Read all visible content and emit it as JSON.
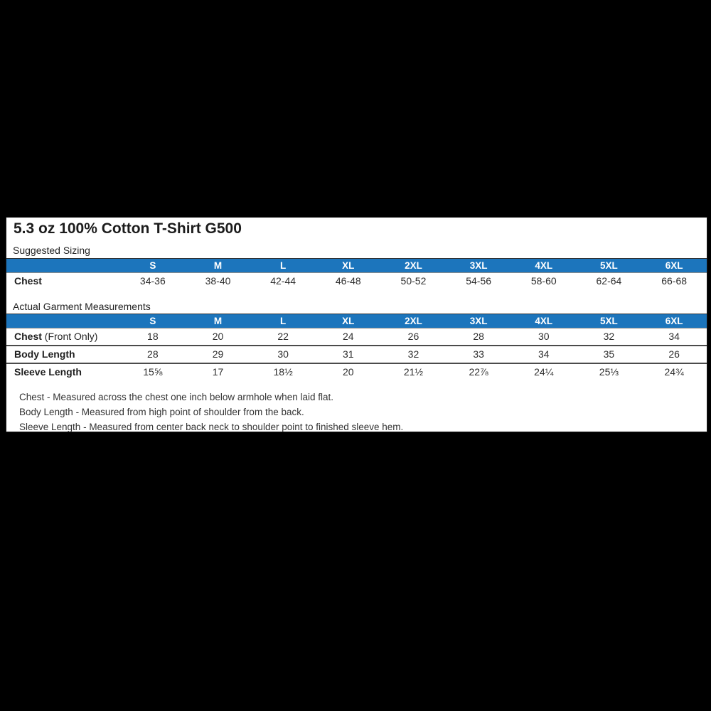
{
  "page": {
    "background_color": "#000000",
    "panel_background": "#ffffff"
  },
  "colors": {
    "header_blue": "#1c75bc",
    "header_text": "#ffffff",
    "title_text": "#1c1c1c",
    "row_divider": "#4b4b4b"
  },
  "title": "5.3 oz 100% Cotton T-Shirt G500",
  "suggested_sizing": {
    "section_label": "Suggested Sizing",
    "sizes": [
      "S",
      "M",
      "L",
      "XL",
      "2XL",
      "3XL",
      "4XL",
      "5XL",
      "6XL"
    ],
    "rows": [
      {
        "label": "Chest",
        "label_suffix": "",
        "values": [
          "34-36",
          "38-40",
          "42-44",
          "46-48",
          "50-52",
          "54-56",
          "58-60",
          "62-64",
          "66-68"
        ]
      }
    ]
  },
  "garment_measurements": {
    "section_label": "Actual Garment Measurements",
    "sizes": [
      "S",
      "M",
      "L",
      "XL",
      "2XL",
      "3XL",
      "4XL",
      "5XL",
      "6XL"
    ],
    "rows": [
      {
        "label": "Chest",
        "label_suffix": " (Front Only)",
        "values": [
          "18",
          "20",
          "22",
          "24",
          "26",
          "28",
          "30",
          "32",
          "34"
        ]
      },
      {
        "label": "Body Length",
        "label_suffix": "",
        "values": [
          "28",
          "29",
          "30",
          "31",
          "32",
          "33",
          "34",
          "35",
          "26"
        ]
      },
      {
        "label": "Sleeve Length",
        "label_suffix": "",
        "values": [
          "15⅝",
          "17",
          "18½",
          "20",
          "21½",
          "22⅞",
          "24¼",
          "25⅓",
          "24¾"
        ]
      }
    ]
  },
  "notes": [
    "Chest - Measured across the chest one inch below armhole when laid flat.",
    "Body Length - Measured from high point of shoulder from the back.",
    "Sleeve Length - Measured from center back neck to shoulder point to finished sleeve hem."
  ]
}
